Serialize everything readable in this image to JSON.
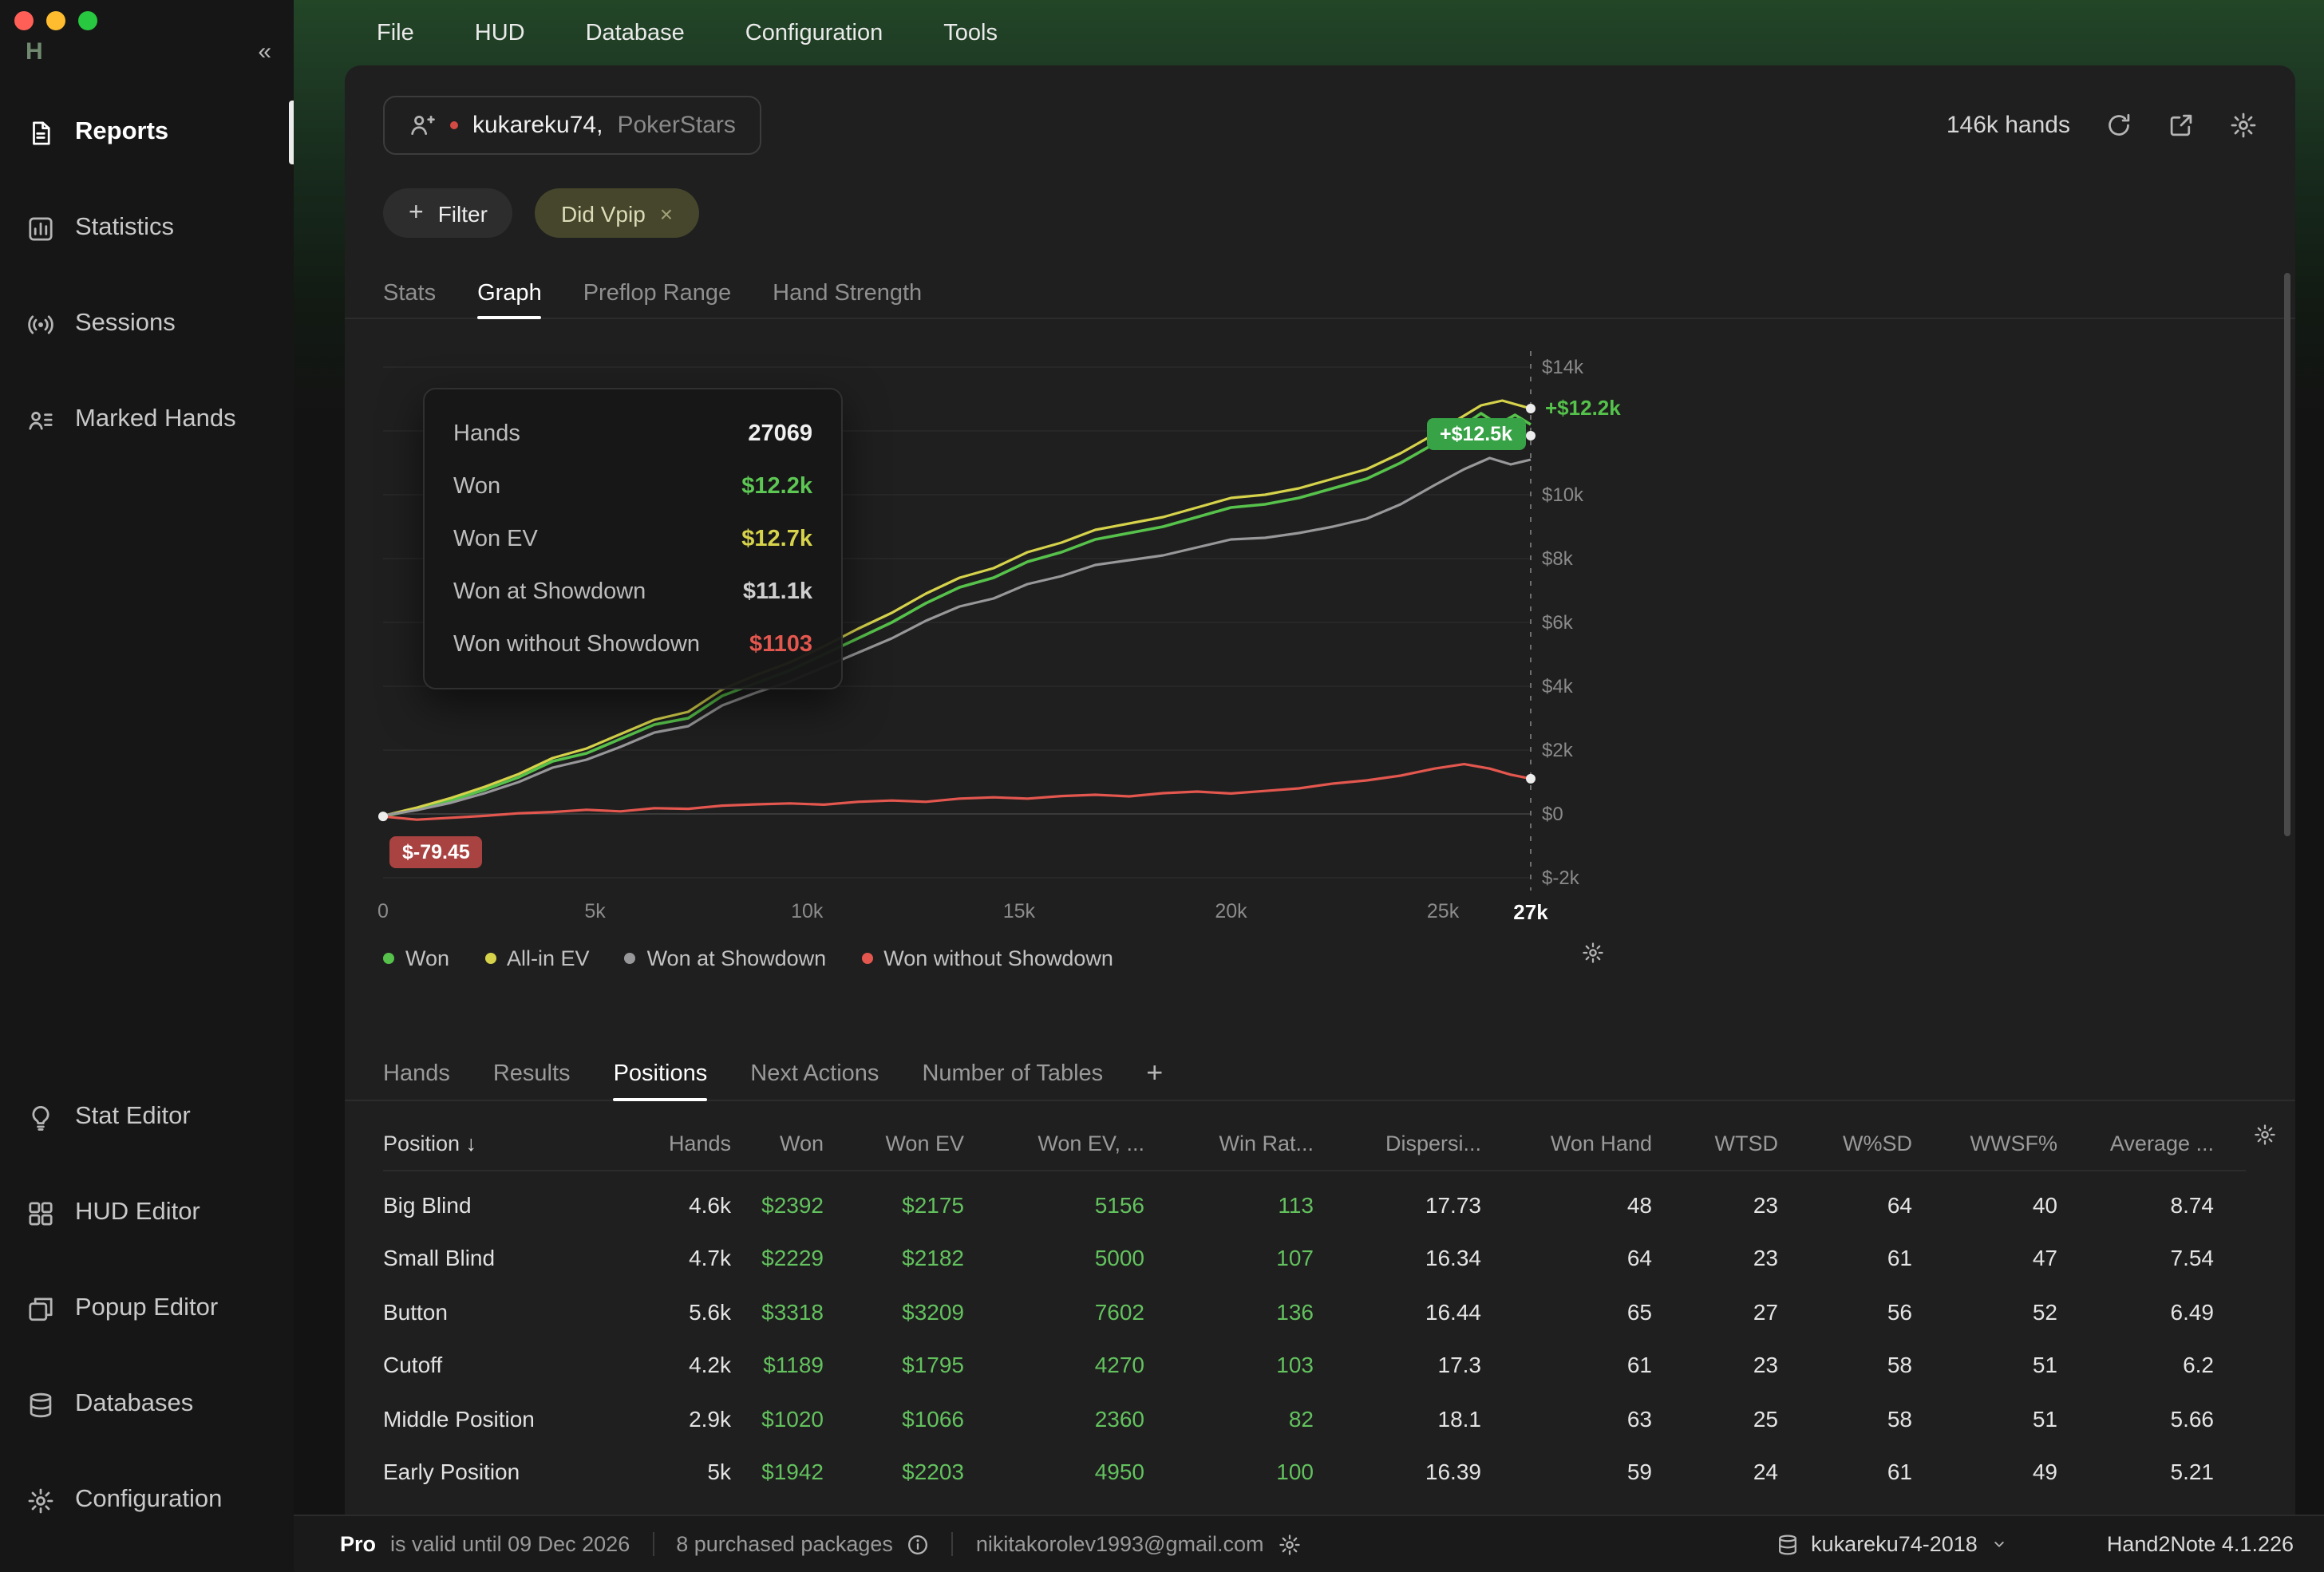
{
  "menu_bar": {
    "items": [
      "File",
      "HUD",
      "Database",
      "Configuration",
      "Tools"
    ]
  },
  "sidebar": {
    "logo_text": "H",
    "collapse": "«",
    "top_items": [
      {
        "label": "Reports",
        "icon": "reports-icon",
        "active": true
      },
      {
        "label": "Statistics",
        "icon": "statistics-icon",
        "active": false
      },
      {
        "label": "Sessions",
        "icon": "sessions-icon",
        "active": false
      },
      {
        "label": "Marked Hands",
        "icon": "marked-hands-icon",
        "active": false
      }
    ],
    "bottom_items": [
      {
        "label": "Stat Editor",
        "icon": "stat-editor-icon"
      },
      {
        "label": "HUD Editor",
        "icon": "hud-editor-icon"
      },
      {
        "label": "Popup Editor",
        "icon": "popup-editor-icon"
      },
      {
        "label": "Databases",
        "icon": "databases-icon"
      },
      {
        "label": "Configuration",
        "icon": "configuration-icon"
      }
    ]
  },
  "header": {
    "player_name": "kukareku74,",
    "player_site": "PokerStars",
    "hands_count": "146k hands"
  },
  "filter_bar": {
    "add_filter_label": "Filter",
    "chips": [
      {
        "label": "Did Vpip"
      }
    ]
  },
  "view_tabs": [
    {
      "label": "Stats",
      "active": false
    },
    {
      "label": "Graph",
      "active": true
    },
    {
      "label": "Preflop Range",
      "active": false
    },
    {
      "label": "Hand Strength",
      "active": false
    }
  ],
  "tooltip": {
    "rows": [
      {
        "label": "Hands",
        "value": "27069",
        "color": "#f0f0f0"
      },
      {
        "label": "Won",
        "value": "$12.2k",
        "color": "#5dc754"
      },
      {
        "label": "Won EV",
        "value": "$12.7k",
        "color": "#d6d34b"
      },
      {
        "label": "Won at Showdown",
        "value": "$11.1k",
        "color": "#cfcfcf"
      },
      {
        "label": "Won without Showdown",
        "value": "$1103",
        "color": "#e4574f"
      }
    ]
  },
  "chart_data": {
    "type": "line",
    "x_unit": "hands",
    "xlim": [
      0,
      27069
    ],
    "ylim": [
      -2000,
      14000
    ],
    "grid_values": [
      14000,
      12000,
      10000,
      8000,
      6000,
      4000,
      2000,
      0,
      -2000
    ],
    "x_ticks": [
      {
        "label": "0",
        "value": 0
      },
      {
        "label": "5k",
        "value": 5000
      },
      {
        "label": "10k",
        "value": 10000
      },
      {
        "label": "15k",
        "value": 15000
      },
      {
        "label": "20k",
        "value": 20000
      },
      {
        "label": "25k",
        "value": 25000
      },
      {
        "label": "27k",
        "value": 27069,
        "current": true
      }
    ],
    "y_ticks": [
      {
        "label": "$14k",
        "value": 14000
      },
      {
        "label": "$10k",
        "value": 10000
      },
      {
        "label": "$8k",
        "value": 8000
      },
      {
        "label": "$6k",
        "value": 6000
      },
      {
        "label": "$4k",
        "value": 4000
      },
      {
        "label": "$2k",
        "value": 2000
      },
      {
        "label": "$0",
        "value": 0
      },
      {
        "label": "$-2k",
        "value": -2000
      }
    ],
    "annotations": [
      {
        "text": "+$12.2k",
        "at_value": 12700,
        "kind": "end-label"
      },
      {
        "text": "+$12.5k",
        "at_value": 11850,
        "kind": "end-badge"
      },
      {
        "text": "$-79.45",
        "at_value": -79,
        "kind": "start-badge"
      }
    ],
    "end_dot_values": [
      12700,
      11850,
      1103
    ],
    "start_dot": [
      0,
      -79
    ],
    "series": [
      {
        "name": "Won",
        "color": "#57c24b",
        "width": 1.8,
        "points": [
          [
            0,
            -79
          ],
          [
            800,
            150
          ],
          [
            1600,
            420
          ],
          [
            2400,
            760
          ],
          [
            3200,
            1150
          ],
          [
            4000,
            1650
          ],
          [
            4800,
            1900
          ],
          [
            5600,
            2350
          ],
          [
            6400,
            2800
          ],
          [
            7200,
            3000
          ],
          [
            8000,
            3700
          ],
          [
            8800,
            4100
          ],
          [
            9600,
            4500
          ],
          [
            10400,
            5000
          ],
          [
            11200,
            5500
          ],
          [
            12000,
            6000
          ],
          [
            12800,
            6600
          ],
          [
            13600,
            7100
          ],
          [
            14400,
            7400
          ],
          [
            15200,
            7900
          ],
          [
            16000,
            8200
          ],
          [
            16800,
            8600
          ],
          [
            17600,
            8800
          ],
          [
            18400,
            9000
          ],
          [
            19200,
            9300
          ],
          [
            20000,
            9600
          ],
          [
            20800,
            9700
          ],
          [
            21600,
            9900
          ],
          [
            22400,
            10200
          ],
          [
            23200,
            10500
          ],
          [
            24000,
            11000
          ],
          [
            24800,
            11600
          ],
          [
            25400,
            12100
          ],
          [
            25900,
            12550
          ],
          [
            26300,
            12200
          ],
          [
            26700,
            12500
          ],
          [
            27069,
            12200
          ]
        ]
      },
      {
        "name": "All-in EV",
        "color": "#d6d34b",
        "width": 1.6,
        "points": [
          [
            0,
            -60
          ],
          [
            800,
            200
          ],
          [
            1600,
            500
          ],
          [
            2400,
            850
          ],
          [
            3200,
            1250
          ],
          [
            4000,
            1750
          ],
          [
            4800,
            2050
          ],
          [
            5600,
            2500
          ],
          [
            6400,
            2950
          ],
          [
            7200,
            3200
          ],
          [
            8000,
            3900
          ],
          [
            8800,
            4350
          ],
          [
            9600,
            4750
          ],
          [
            10400,
            5250
          ],
          [
            11200,
            5800
          ],
          [
            12000,
            6300
          ],
          [
            12800,
            6900
          ],
          [
            13600,
            7400
          ],
          [
            14400,
            7700
          ],
          [
            15200,
            8200
          ],
          [
            16000,
            8500
          ],
          [
            16800,
            8900
          ],
          [
            17600,
            9100
          ],
          [
            18400,
            9300
          ],
          [
            19200,
            9600
          ],
          [
            20000,
            9900
          ],
          [
            20800,
            10000
          ],
          [
            21600,
            10200
          ],
          [
            22400,
            10500
          ],
          [
            23200,
            10800
          ],
          [
            24000,
            11300
          ],
          [
            24800,
            11900
          ],
          [
            25400,
            12400
          ],
          [
            25900,
            12800
          ],
          [
            26400,
            12950
          ],
          [
            27069,
            12700
          ]
        ]
      },
      {
        "name": "Won at Showdown",
        "color": "#98989a",
        "width": 1.6,
        "points": [
          [
            0,
            -50
          ],
          [
            800,
            120
          ],
          [
            1600,
            350
          ],
          [
            2400,
            650
          ],
          [
            3200,
            1000
          ],
          [
            4000,
            1450
          ],
          [
            4800,
            1700
          ],
          [
            5600,
            2100
          ],
          [
            6400,
            2550
          ],
          [
            7200,
            2750
          ],
          [
            8000,
            3400
          ],
          [
            8800,
            3800
          ],
          [
            9600,
            4150
          ],
          [
            10400,
            4600
          ],
          [
            11200,
            5050
          ],
          [
            12000,
            5500
          ],
          [
            12800,
            6050
          ],
          [
            13600,
            6500
          ],
          [
            14400,
            6750
          ],
          [
            15200,
            7200
          ],
          [
            16000,
            7450
          ],
          [
            16800,
            7800
          ],
          [
            17600,
            7950
          ],
          [
            18400,
            8100
          ],
          [
            19200,
            8350
          ],
          [
            20000,
            8600
          ],
          [
            20800,
            8650
          ],
          [
            21600,
            8800
          ],
          [
            22400,
            9000
          ],
          [
            23200,
            9250
          ],
          [
            24000,
            9700
          ],
          [
            24800,
            10300
          ],
          [
            25500,
            10800
          ],
          [
            26100,
            11150
          ],
          [
            26600,
            10950
          ],
          [
            27069,
            11100
          ]
        ]
      },
      {
        "name": "Won without Showdown",
        "color": "#e4574f",
        "width": 1.6,
        "points": [
          [
            0,
            -79
          ],
          [
            800,
            -180
          ],
          [
            1600,
            -120
          ],
          [
            2400,
            -60
          ],
          [
            3200,
            20
          ],
          [
            4000,
            60
          ],
          [
            4800,
            130
          ],
          [
            5600,
            80
          ],
          [
            6400,
            180
          ],
          [
            7200,
            160
          ],
          [
            8000,
            260
          ],
          [
            8800,
            300
          ],
          [
            9600,
            330
          ],
          [
            10400,
            290
          ],
          [
            11200,
            380
          ],
          [
            12000,
            420
          ],
          [
            12800,
            380
          ],
          [
            13600,
            480
          ],
          [
            14400,
            520
          ],
          [
            15200,
            480
          ],
          [
            16000,
            560
          ],
          [
            16800,
            600
          ],
          [
            17600,
            550
          ],
          [
            18400,
            650
          ],
          [
            19200,
            700
          ],
          [
            20000,
            640
          ],
          [
            20800,
            720
          ],
          [
            21600,
            800
          ],
          [
            22400,
            950
          ],
          [
            23200,
            1050
          ],
          [
            24000,
            1200
          ],
          [
            24800,
            1420
          ],
          [
            25500,
            1560
          ],
          [
            26100,
            1420
          ],
          [
            26600,
            1230
          ],
          [
            27069,
            1103
          ]
        ]
      }
    ]
  },
  "legend": {
    "items": [
      {
        "label": "Won",
        "color": "#57c24b"
      },
      {
        "label": "All-in EV",
        "color": "#d6d34b"
      },
      {
        "label": "Won at Showdown",
        "color": "#98989a"
      },
      {
        "label": "Won without Showdown",
        "color": "#e4574f"
      }
    ]
  },
  "report_tabs": [
    {
      "label": "Hands",
      "active": false
    },
    {
      "label": "Results",
      "active": false
    },
    {
      "label": "Positions",
      "active": true
    },
    {
      "label": "Next Actions",
      "active": false
    },
    {
      "label": "Number of Tables",
      "active": false
    },
    {
      "label": "+",
      "active": false,
      "add": true
    }
  ],
  "table": {
    "sort_arrow": "↓",
    "columns": [
      {
        "label": "Position",
        "green": false
      },
      {
        "label": "Hands",
        "green": false
      },
      {
        "label": "Won",
        "green": true
      },
      {
        "label": "Won EV",
        "green": true
      },
      {
        "label": "Won EV, ...",
        "green": true
      },
      {
        "label": "Win Rat...",
        "green": true
      },
      {
        "label": "Dispersi...",
        "green": false
      },
      {
        "label": "Won Hand",
        "green": false
      },
      {
        "label": "WTSD",
        "green": false
      },
      {
        "label": "W%SD",
        "green": false
      },
      {
        "label": "WWSF%",
        "green": false
      },
      {
        "label": "Average ...",
        "green": false
      }
    ],
    "rows": [
      [
        "Big Blind",
        "4.6k",
        "$2392",
        "$2175",
        "5156",
        "113",
        "17.73",
        "48",
        "23",
        "64",
        "40",
        "8.74"
      ],
      [
        "Small Blind",
        "4.7k",
        "$2229",
        "$2182",
        "5000",
        "107",
        "16.34",
        "64",
        "23",
        "61",
        "47",
        "7.54"
      ],
      [
        "Button",
        "5.6k",
        "$3318",
        "$3209",
        "7602",
        "136",
        "16.44",
        "65",
        "27",
        "56",
        "52",
        "6.49"
      ],
      [
        "Cutoff",
        "4.2k",
        "$1189",
        "$1795",
        "4270",
        "103",
        "17.3",
        "61",
        "23",
        "58",
        "51",
        "6.2"
      ],
      [
        "Middle Position",
        "2.9k",
        "$1020",
        "$1066",
        "2360",
        "82",
        "18.1",
        "63",
        "25",
        "58",
        "51",
        "5.66"
      ],
      [
        "Early Position",
        "5k",
        "$1942",
        "$2203",
        "4950",
        "100",
        "16.39",
        "59",
        "24",
        "61",
        "49",
        "5.21"
      ]
    ]
  },
  "statusbar": {
    "license_tier": "Pro",
    "license_text": "is valid until 09 Dec 2026",
    "packages": "8 purchased packages",
    "email": "nikitakorolev1993@gmail.com",
    "database_name": "kukareku74-2018",
    "version": "Hand2Note 4.1.226"
  }
}
